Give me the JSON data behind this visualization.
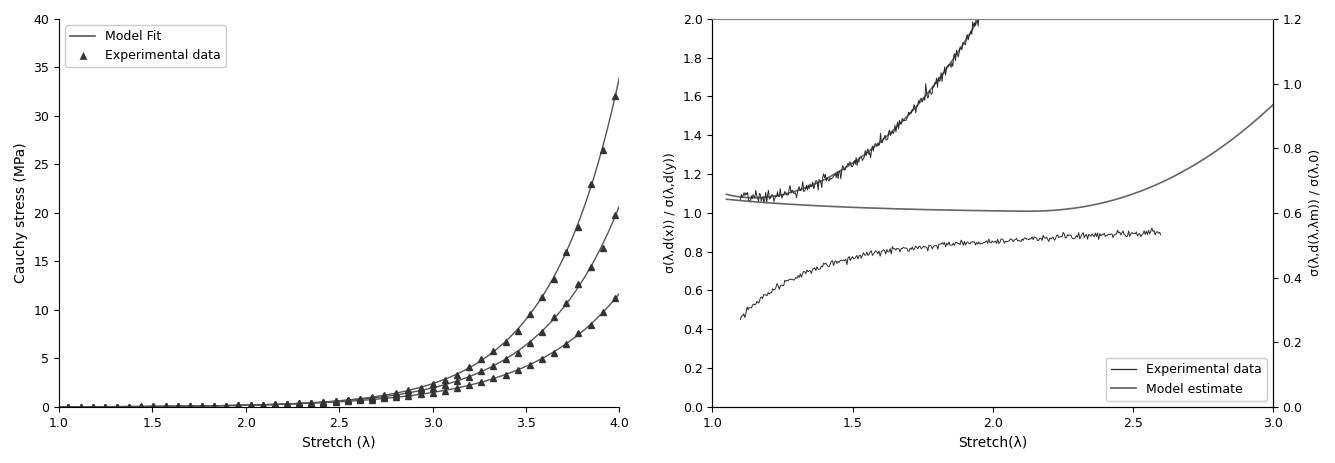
{
  "left": {
    "xlabel": "Stretch (λ)",
    "ylabel": "Cauchy stress (MPa)",
    "xlim": [
      1,
      4
    ],
    "ylim": [
      0,
      40
    ],
    "xticks": [
      1,
      1.5,
      2,
      2.5,
      3,
      3.5,
      4
    ],
    "yticks": [
      0,
      5,
      10,
      15,
      20,
      25,
      30,
      35,
      40
    ],
    "legend_model": "Model Fit",
    "legend_exp": "Experimental data"
  },
  "right": {
    "xlabel": "Stretch(λ)",
    "ylabel_left": "σ(λ,d(x)) / σ(λ,d(y))",
    "ylabel_right": "σ(λ,d(λ,λm)) / σ(λ,0)",
    "xlim": [
      1.0,
      3.0
    ],
    "ylim_left": [
      0.0,
      2.0
    ],
    "ylim_right": [
      0,
      1.2
    ],
    "xticks": [
      1.0,
      1.5,
      2.0,
      2.5,
      3.0
    ],
    "yticks_left": [
      0.0,
      0.2,
      0.4,
      0.6,
      0.8,
      1.0,
      1.2,
      1.4,
      1.6,
      1.8,
      2.0
    ],
    "yticks_right": [
      0,
      0.2,
      0.4,
      0.6,
      0.8,
      1.0,
      1.2
    ],
    "legend_exp": "Experimental data",
    "legend_model": "Model estimate"
  }
}
